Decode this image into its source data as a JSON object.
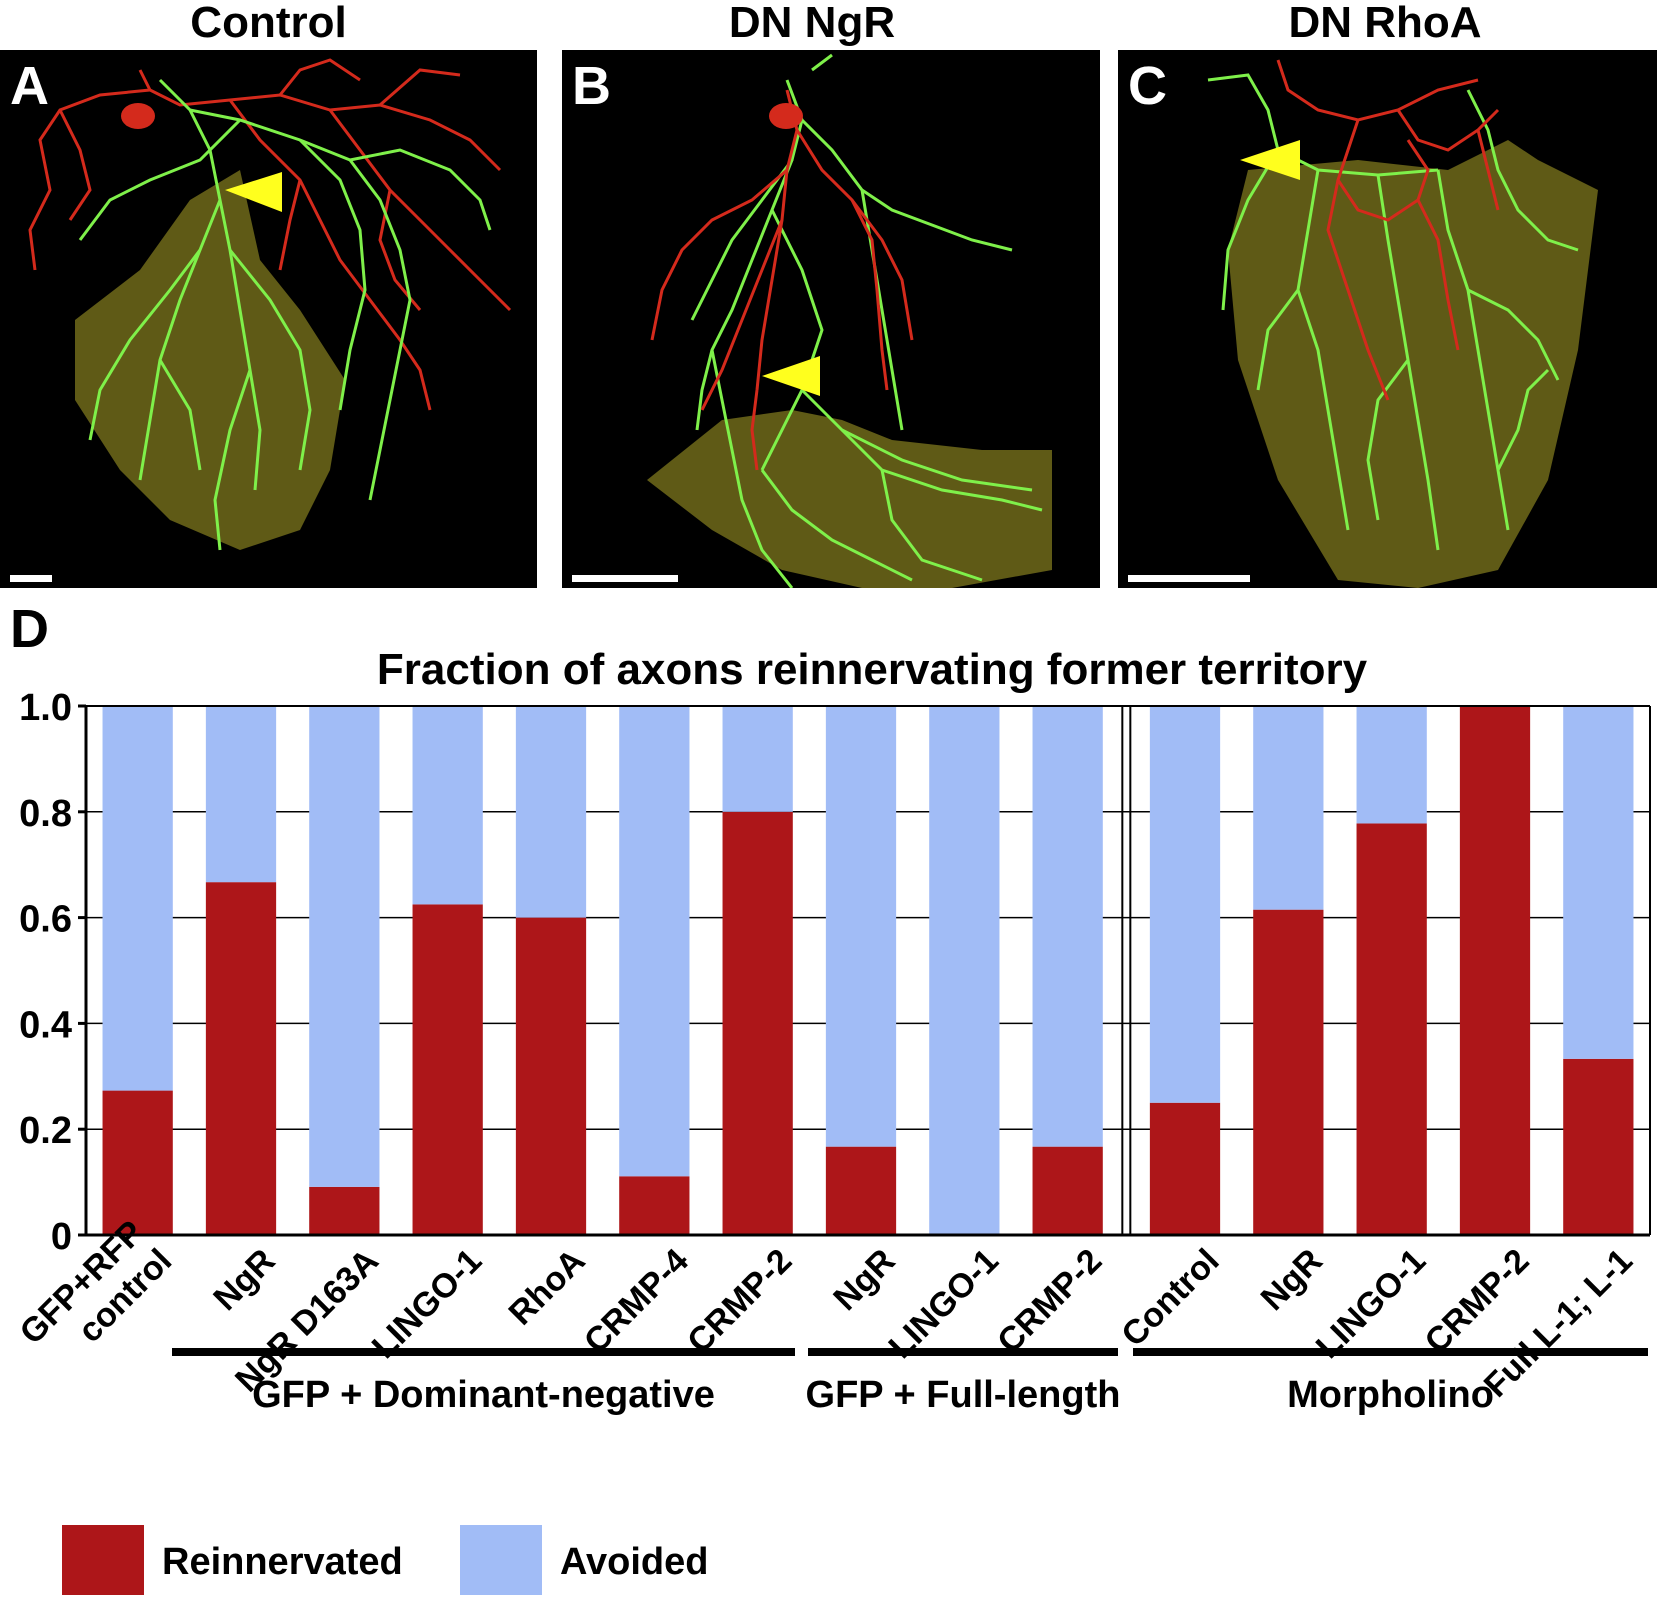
{
  "panels": [
    {
      "letter": "A",
      "title": "Control"
    },
    {
      "letter": "B",
      "title": "DN NgR"
    },
    {
      "letter": "C",
      "title": "DN RhoA"
    }
  ],
  "panel_d_letter": "D",
  "colors": {
    "reinnervated": "#ad1619",
    "avoided": "#a1bcf6",
    "axon_green": "#7ff04a",
    "axon_red": "#d42a1c",
    "territory": "#5f5a16",
    "arrowhead": "#ffff1e"
  },
  "legend": [
    {
      "label": "Reinnervated",
      "color_key": "reinnervated"
    },
    {
      "label": "Avoided",
      "color_key": "avoided"
    }
  ],
  "groups": [
    {
      "label": "GFP + Dominant-negative"
    },
    {
      "label": "GFP + Full-length"
    },
    {
      "label": "Morpholino"
    }
  ],
  "chart_data": {
    "type": "bar",
    "stacked": true,
    "title": "Fraction of axons reinnervating former territory",
    "xlabel": "",
    "ylabel": "",
    "ylim": [
      0,
      1.0
    ],
    "yticks": [
      "0",
      "0.2",
      "0.4",
      "0.6",
      "0.8",
      "1.0"
    ],
    "grid": true,
    "legend_position": "bottom-left",
    "categories": [
      "GFP+RFP control",
      "NgR",
      "NgR D163A",
      "LINGO-1",
      "RhoA",
      "CRMP-4",
      "CRMP-2",
      "NgR",
      "LINGO-1",
      "CRMP-2",
      "Control",
      "NgR",
      "LINGO-1",
      "CRMP-2",
      "Full L-1; L-1"
    ],
    "category_lines": [
      [
        "GFP+RFP",
        "control"
      ],
      [
        "NgR"
      ],
      [
        "NgR D163A"
      ],
      [
        "LINGO-1"
      ],
      [
        "RhoA"
      ],
      [
        "CRMP-4"
      ],
      [
        "CRMP-2"
      ],
      [
        "NgR"
      ],
      [
        "LINGO-1"
      ],
      [
        "CRMP-2"
      ],
      [
        "Control"
      ],
      [
        "NgR"
      ],
      [
        "LINGO-1"
      ],
      [
        "CRMP-2"
      ],
      [
        "Full L-1; L-1"
      ]
    ],
    "group_index": [
      0,
      0,
      0,
      0,
      0,
      0,
      0,
      1,
      1,
      1,
      2,
      2,
      2,
      2,
      2
    ],
    "series": [
      {
        "name": "Reinnervated",
        "values": [
          0.273,
          0.667,
          0.091,
          0.625,
          0.6,
          0.111,
          0.8,
          0.167,
          0.0,
          0.167,
          0.25,
          0.615,
          0.778,
          1.0,
          0.333
        ]
      },
      {
        "name": "Avoided",
        "values": [
          0.727,
          0.333,
          0.909,
          0.375,
          0.4,
          0.889,
          0.2,
          0.833,
          1.0,
          0.833,
          0.75,
          0.385,
          0.222,
          0.0,
          0.667
        ]
      }
    ]
  }
}
